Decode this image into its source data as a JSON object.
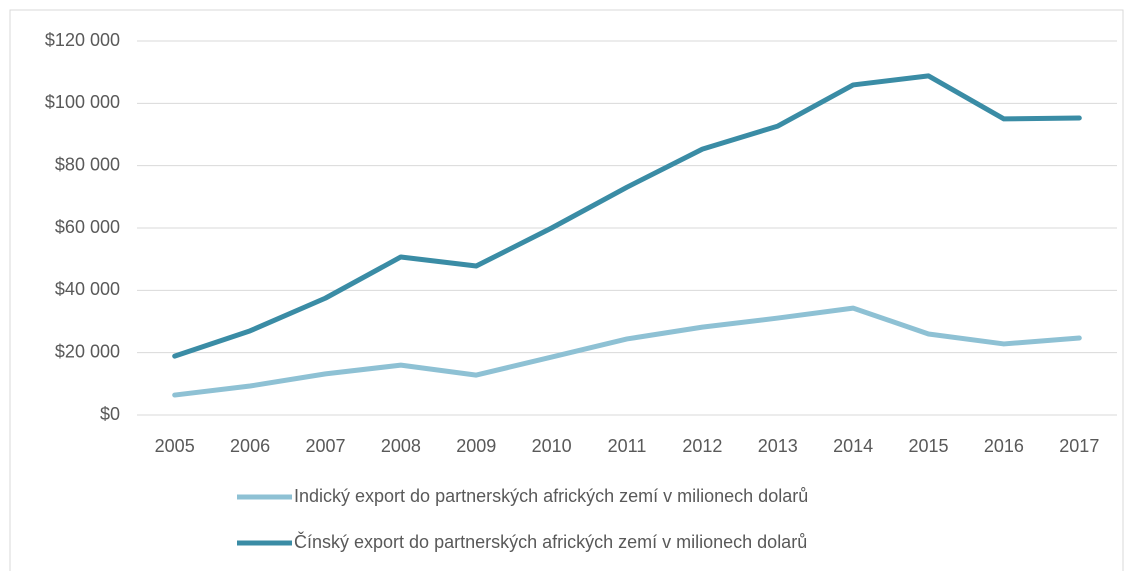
{
  "chart_data": {
    "type": "line",
    "categories": [
      "2005",
      "2006",
      "2007",
      "2008",
      "2009",
      "2010",
      "2011",
      "2012",
      "2013",
      "2014",
      "2015",
      "2016",
      "2017"
    ],
    "series": [
      {
        "name": "Indický export do partnerských afrických zemí v milionech dolarů",
        "color": "#8ec1d4",
        "values": [
          6400,
          9300,
          13200,
          16000,
          12800,
          18600,
          24400,
          28200,
          31100,
          34300,
          26000,
          22800,
          24700
        ]
      },
      {
        "name": "Čínský export do partnerských afrických zemí v milionech dolarů",
        "color": "#3a8ca5",
        "values": [
          18900,
          27000,
          37500,
          50700,
          47800,
          60000,
          73100,
          85300,
          92700,
          105900,
          108800,
          95000,
          95300
        ]
      }
    ],
    "ylim": [
      0,
      120000
    ],
    "yticks": [
      {
        "value": 0,
        "label": "$0"
      },
      {
        "value": 20000,
        "label": "$20 000"
      },
      {
        "value": 40000,
        "label": "$40 000"
      },
      {
        "value": 60000,
        "label": "$60 000"
      },
      {
        "value": 80000,
        "label": "$80 000"
      },
      {
        "value": 100000,
        "label": "$100 000"
      },
      {
        "value": 120000,
        "label": "$120 000"
      }
    ],
    "grid": true
  }
}
